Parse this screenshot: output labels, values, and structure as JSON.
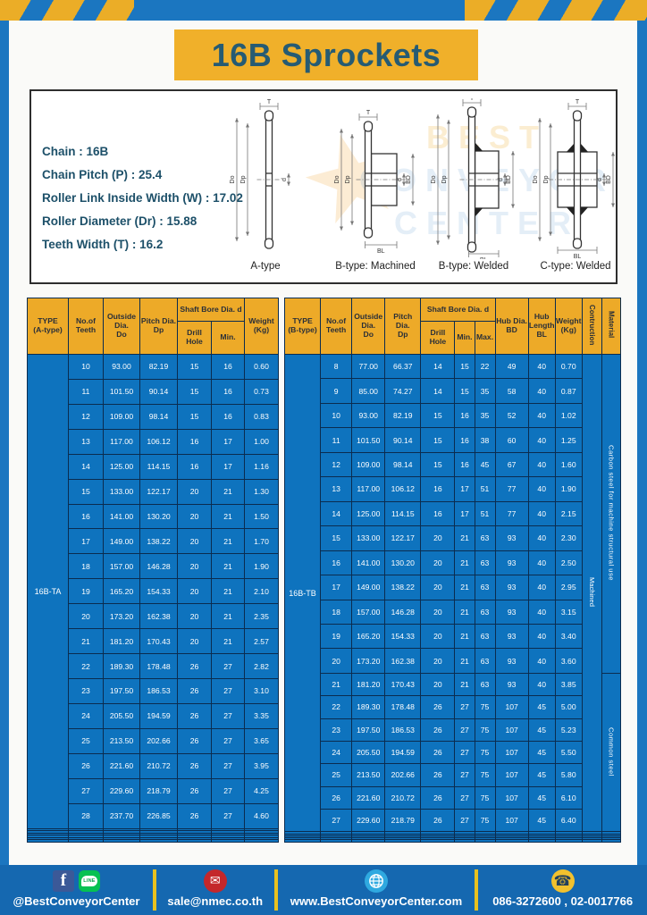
{
  "header": {
    "title": "16B Sprockets"
  },
  "specs": {
    "lines": [
      "Chain  :  16B",
      "Chain Pitch (P)  :  25.4",
      "Roller Link Inside Width (W)  :  17.02",
      "Roller Diameter (Dr)  : 15.88",
      "Teeth Width (T)  :  16.2"
    ]
  },
  "watermark": {
    "lines": [
      "BEST",
      "CONVEYOR",
      "CENTER"
    ],
    "star": "★"
  },
  "diagrams": {
    "captions": [
      "A-type",
      "B-type: Machined",
      "B-type: Welded",
      "C-type: Welded"
    ],
    "dim_labels": {
      "t": "T",
      "do": "Do",
      "dp": "Dp",
      "d": "d",
      "bd": "BD",
      "bl": "BL"
    }
  },
  "left_table": {
    "type_label": "16B-TA",
    "header": {
      "type": "TYPE\n(A-type)",
      "teeth": "No.of\nTeeth",
      "outside": "Outside\nDia.\nDo",
      "pitch": "Pitch Dia.\nDp",
      "shaft": "Shaft Bore Dia. d",
      "drill": "Drill Hole",
      "min": "Min.",
      "weight": "Weight\n(Kg)"
    },
    "rows": [
      [
        "10",
        "93.00",
        "82.19",
        "15",
        "16",
        "0.60"
      ],
      [
        "11",
        "101.50",
        "90.14",
        "15",
        "16",
        "0.73"
      ],
      [
        "12",
        "109.00",
        "98.14",
        "15",
        "16",
        "0.83"
      ],
      [
        "13",
        "117.00",
        "106.12",
        "16",
        "17",
        "1.00"
      ],
      [
        "14",
        "125.00",
        "114.15",
        "16",
        "17",
        "1.16"
      ],
      [
        "15",
        "133.00",
        "122.17",
        "20",
        "21",
        "1.30"
      ],
      [
        "16",
        "141.00",
        "130.20",
        "20",
        "21",
        "1.50"
      ],
      [
        "17",
        "149.00",
        "138.22",
        "20",
        "21",
        "1.70"
      ],
      [
        "18",
        "157.00",
        "146.28",
        "20",
        "21",
        "1.90"
      ],
      [
        "19",
        "165.20",
        "154.33",
        "20",
        "21",
        "2.10"
      ],
      [
        "20",
        "173.20",
        "162.38",
        "20",
        "21",
        "2.35"
      ],
      [
        "21",
        "181.20",
        "170.43",
        "20",
        "21",
        "2.57"
      ],
      [
        "22",
        "189.30",
        "178.48",
        "26",
        "27",
        "2.82"
      ],
      [
        "23",
        "197.50",
        "186.53",
        "26",
        "27",
        "3.10"
      ],
      [
        "24",
        "205.50",
        "194.59",
        "26",
        "27",
        "3.35"
      ],
      [
        "25",
        "213.50",
        "202.66",
        "26",
        "27",
        "3.65"
      ],
      [
        "26",
        "221.60",
        "210.72",
        "26",
        "27",
        "3.95"
      ],
      [
        "27",
        "229.60",
        "218.79",
        "26",
        "27",
        "4.25"
      ],
      [
        "28",
        "237.70",
        "226.85",
        "26",
        "27",
        "4.60"
      ]
    ],
    "empty_rows": 6
  },
  "right_table": {
    "type_label": "16B-TB",
    "header": {
      "type": "TYPE\n(B-type)",
      "teeth": "No.of\nTeeth",
      "outside": "Outside\nDia.\nDo",
      "pitch": "Pitch Dia.\nDp",
      "shaft": "Shaft Bore Dia. d",
      "drill": "Drill Hole",
      "min": "Min.",
      "max": "Max.",
      "hub_dia": "Hub Dia.\nBD",
      "hub_len": "Hub\nLength\nBL",
      "weight": "Weight\n(Kg)",
      "construction": "Contruction",
      "material": "Material"
    },
    "rows": [
      [
        "8",
        "77.00",
        "66.37",
        "14",
        "15",
        "22",
        "49",
        "40",
        "0.70"
      ],
      [
        "9",
        "85.00",
        "74.27",
        "14",
        "15",
        "35",
        "58",
        "40",
        "0.87"
      ],
      [
        "10",
        "93.00",
        "82.19",
        "15",
        "16",
        "35",
        "52",
        "40",
        "1.02"
      ],
      [
        "11",
        "101.50",
        "90.14",
        "15",
        "16",
        "38",
        "60",
        "40",
        "1.25"
      ],
      [
        "12",
        "109.00",
        "98.14",
        "15",
        "16",
        "45",
        "67",
        "40",
        "1.60"
      ],
      [
        "13",
        "117.00",
        "106.12",
        "16",
        "17",
        "51",
        "77",
        "40",
        "1.90"
      ],
      [
        "14",
        "125.00",
        "114.15",
        "16",
        "17",
        "51",
        "77",
        "40",
        "2.15"
      ],
      [
        "15",
        "133.00",
        "122.17",
        "20",
        "21",
        "63",
        "93",
        "40",
        "2.30"
      ],
      [
        "16",
        "141.00",
        "130.20",
        "20",
        "21",
        "63",
        "93",
        "40",
        "2.50"
      ],
      [
        "17",
        "149.00",
        "138.22",
        "20",
        "21",
        "63",
        "93",
        "40",
        "2.95"
      ],
      [
        "18",
        "157.00",
        "146.28",
        "20",
        "21",
        "63",
        "93",
        "40",
        "3.15"
      ],
      [
        "19",
        "165.20",
        "154.33",
        "20",
        "21",
        "63",
        "93",
        "40",
        "3.40"
      ],
      [
        "20",
        "173.20",
        "162.38",
        "20",
        "21",
        "63",
        "93",
        "40",
        "3.60"
      ],
      [
        "21",
        "181.20",
        "170.43",
        "20",
        "21",
        "63",
        "93",
        "40",
        "3.85"
      ],
      [
        "22",
        "189.30",
        "178.48",
        "26",
        "27",
        "75",
        "107",
        "45",
        "5.00"
      ],
      [
        "23",
        "197.50",
        "186.53",
        "26",
        "27",
        "75",
        "107",
        "45",
        "5.23"
      ],
      [
        "24",
        "205.50",
        "194.59",
        "26",
        "27",
        "75",
        "107",
        "45",
        "5.50"
      ],
      [
        "25",
        "213.50",
        "202.66",
        "26",
        "27",
        "75",
        "107",
        "45",
        "5.80"
      ],
      [
        "26",
        "221.60",
        "210.72",
        "26",
        "27",
        "75",
        "107",
        "45",
        "6.10"
      ],
      [
        "27",
        "229.60",
        "218.79",
        "26",
        "27",
        "75",
        "107",
        "45",
        "6.40"
      ]
    ],
    "construction_value": "Machined",
    "materials": [
      {
        "text": "Carbon steel for machine structural use",
        "rows": 13
      },
      {
        "text": "Common steel",
        "rows": 7
      }
    ],
    "empty_rows": 5
  },
  "footer": {
    "items": [
      {
        "icons": [
          "facebook-icon",
          "line-icon"
        ],
        "label": "@BestConveyorCenter"
      },
      {
        "icons": [
          "mail-icon"
        ],
        "label": "sale@nmec.co.th"
      },
      {
        "icons": [
          "globe-icon"
        ],
        "label": "www.BestConveyorCenter.com"
      },
      {
        "icons": [
          "phone-icon"
        ],
        "label": "086-3272600 , 02-0017766"
      }
    ],
    "line_bubble_text": "LINE",
    "fb_glyph": "f",
    "mail_glyph": "✉",
    "phone_glyph": "☎"
  },
  "colors": {
    "frame_blue": "#1B76C0",
    "stripe_yellow": "#EBAD27",
    "banner_yellow": "#F0B02A",
    "title_text": "#265B73",
    "table_header_yellow": "#EDAA28",
    "table_body_blue": "#0E73BE",
    "table_border_navy": "#0B2C4F",
    "footer_blue": "#1568B0",
    "divider_yellow": "#E9C11E"
  }
}
